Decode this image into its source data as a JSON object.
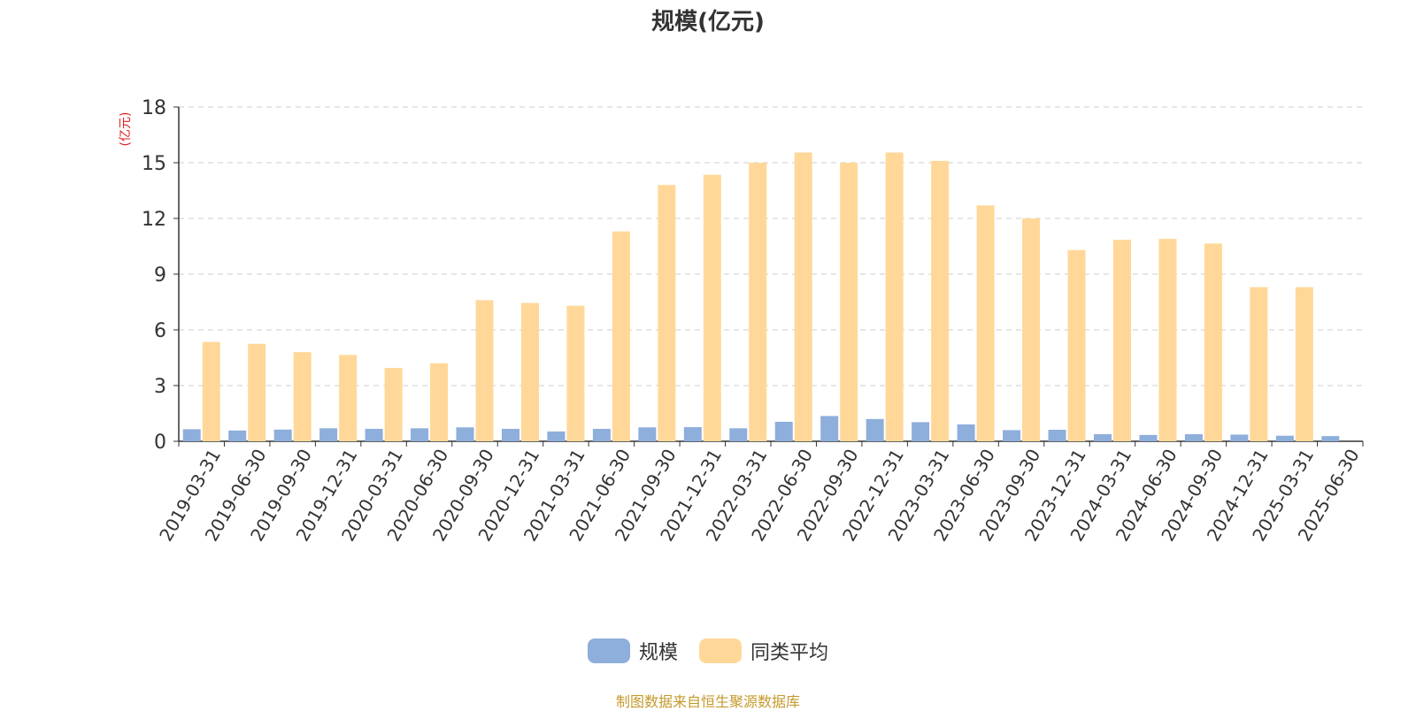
{
  "title": "规模(亿元)",
  "y_unit": "(亿元)",
  "source": "制图数据来自恒生聚源数据库",
  "colors": {
    "scale": "#8eaedb",
    "avg": "#ffd899",
    "axis": "#333333",
    "grid": "#cccccc"
  },
  "chart_data": {
    "type": "bar",
    "title": "规模(亿元)",
    "ylabel": "(亿元)",
    "ylim": [
      0,
      18
    ],
    "yticks": [
      0,
      3,
      6,
      9,
      12,
      15,
      18
    ],
    "grid": true,
    "legend_position": "bottom",
    "categories": [
      "2019-03-31",
      "2019-06-30",
      "2019-09-30",
      "2019-12-31",
      "2020-03-31",
      "2020-06-30",
      "2020-09-30",
      "2020-12-31",
      "2021-03-31",
      "2021-06-30",
      "2021-09-30",
      "2021-12-31",
      "2022-03-31",
      "2022-06-30",
      "2022-09-30",
      "2022-12-31",
      "2023-03-31",
      "2023-06-30",
      "2023-09-30",
      "2023-12-31",
      "2024-03-31",
      "2024-06-30",
      "2024-09-30",
      "2024-12-31",
      "2025-03-31",
      "2025-06-30"
    ],
    "series": [
      {
        "name": "规模",
        "values": [
          0.65,
          0.58,
          0.63,
          0.7,
          0.67,
          0.7,
          0.75,
          0.67,
          0.53,
          0.67,
          0.75,
          0.76,
          0.7,
          1.05,
          1.36,
          1.2,
          1.03,
          0.91,
          0.6,
          0.62,
          0.38,
          0.34,
          0.38,
          0.36,
          0.3,
          0.28
        ]
      },
      {
        "name": "同类平均",
        "values": [
          5.35,
          5.25,
          4.8,
          4.65,
          3.95,
          4.2,
          7.6,
          7.45,
          7.3,
          11.3,
          13.8,
          14.35,
          15.0,
          15.55,
          15.0,
          15.55,
          15.1,
          12.7,
          12.0,
          10.3,
          10.85,
          10.9,
          10.65,
          8.3,
          8.3,
          null
        ]
      }
    ]
  }
}
